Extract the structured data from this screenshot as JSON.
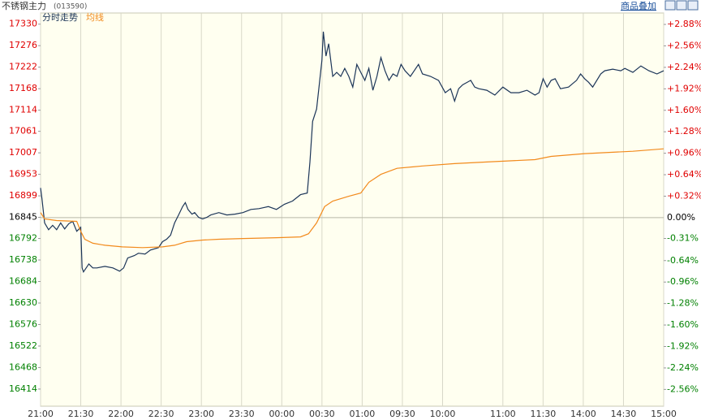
{
  "header": {
    "title": "不锈钢主力",
    "code": "(013590)",
    "overlay_button": "商品叠加"
  },
  "chart_data": {
    "type": "line",
    "xlim": [
      0,
      465
    ],
    "xticks": [
      {
        "value": 0,
        "label": "21:00"
      },
      {
        "value": 30,
        "label": "21:30"
      },
      {
        "value": 60,
        "label": "22:00"
      },
      {
        "value": 90,
        "label": "22:30"
      },
      {
        "value": 120,
        "label": "23:00"
      },
      {
        "value": 150,
        "label": "23:30"
      },
      {
        "value": 180,
        "label": "00:00"
      },
      {
        "value": 210,
        "label": "00:30"
      },
      {
        "value": 240,
        "label": "01:00"
      },
      {
        "value": 270,
        "label": "09:30"
      },
      {
        "value": 300,
        "label": "10:00"
      },
      {
        "value": 345,
        "label": "11:00"
      },
      {
        "value": 375,
        "label": "11:30"
      },
      {
        "value": 405,
        "label": "14:00"
      },
      {
        "value": 435,
        "label": "14:30"
      },
      {
        "value": 465,
        "label": "15:00"
      }
    ],
    "ylim": [
      16371,
      17358
    ],
    "yticks": [
      17330,
      17276,
      17222,
      17168,
      17114,
      17061,
      17007,
      16953,
      16899,
      16845,
      16792,
      16738,
      16684,
      16630,
      16576,
      16522,
      16468,
      16414
    ],
    "y2lim": [
      -2.81,
      3.05
    ],
    "y2ticks": [
      {
        "value": 2.88,
        "label": "+2.88%"
      },
      {
        "value": 2.56,
        "label": "+2.56%"
      },
      {
        "value": 2.24,
        "label": "+2.24%"
      },
      {
        "value": 1.92,
        "label": "+1.92%"
      },
      {
        "value": 1.6,
        "label": "+1.60%"
      },
      {
        "value": 1.28,
        "label": "+1.28%"
      },
      {
        "value": 0.96,
        "label": "+0.96%"
      },
      {
        "value": 0.64,
        "label": "+0.64%"
      },
      {
        "value": 0.32,
        "label": "+0.32%"
      },
      {
        "value": 0,
        "label": "0.00%"
      },
      {
        "value": -0.31,
        "label": "-0.31%"
      },
      {
        "value": -0.64,
        "label": "-0.64%"
      },
      {
        "value": -0.96,
        "label": "-0.96%"
      },
      {
        "value": -1.28,
        "label": "-1.28%"
      },
      {
        "value": -1.6,
        "label": "-1.60%"
      },
      {
        "value": -1.92,
        "label": "-1.92%"
      },
      {
        "value": -2.24,
        "label": "-2.24%"
      },
      {
        "value": -2.56,
        "label": "-2.56%"
      }
    ],
    "up_color": "#e00000",
    "down_color": "#008000",
    "flat_color": "#000000",
    "grid": true,
    "series": [
      {
        "name": "分时走势",
        "color": "#1c3558",
        "x": [
          0,
          1,
          3,
          6,
          9,
          12,
          15,
          18,
          21,
          24,
          27,
          30,
          31,
          32,
          36,
          39,
          42,
          48,
          54,
          59,
          62,
          65,
          70,
          73,
          78,
          82,
          88,
          91,
          94,
          97,
          100,
          103,
          106,
          108,
          110,
          113,
          115,
          118,
          121,
          124,
          127,
          133,
          139,
          145,
          151,
          157,
          163,
          170,
          176,
          182,
          188,
          194,
          199,
          201,
          203,
          206,
          208,
          210,
          211,
          213,
          215,
          218,
          221,
          224,
          227,
          230,
          233,
          236,
          239,
          242,
          245,
          248,
          251,
          254,
          257,
          260,
          263,
          266,
          269,
          272,
          276,
          282,
          285,
          291,
          297,
          302,
          306,
          309,
          312,
          315,
          321,
          324,
          327,
          333,
          339,
          345,
          351,
          357,
          363,
          369,
          372,
          375,
          378,
          381,
          384,
          388,
          394,
          400,
          403,
          406,
          409,
          412,
          418,
          421,
          427,
          433,
          436,
          442,
          448,
          454,
          460,
          465
        ],
        "values": [
          16919,
          16892,
          16831,
          16814,
          16825,
          16814,
          16831,
          16816,
          16829,
          16835,
          16810,
          16820,
          16718,
          16708,
          16728,
          16718,
          16718,
          16722,
          16718,
          16710,
          16718,
          16743,
          16749,
          16755,
          16753,
          16763,
          16769,
          16784,
          16790,
          16800,
          16831,
          16851,
          16872,
          16882,
          16865,
          16853,
          16857,
          16845,
          16841,
          16845,
          16851,
          16857,
          16851,
          16853,
          16857,
          16865,
          16867,
          16872,
          16865,
          16878,
          16886,
          16902,
          16906,
          16984,
          17086,
          17117,
          17178,
          17240,
          17311,
          17250,
          17281,
          17199,
          17209,
          17199,
          17219,
          17199,
          17172,
          17229,
          17209,
          17189,
          17219,
          17164,
          17199,
          17246,
          17213,
          17189,
          17205,
          17199,
          17229,
          17213,
          17199,
          17229,
          17205,
          17199,
          17189,
          17158,
          17168,
          17137,
          17168,
          17178,
          17189,
          17172,
          17168,
          17164,
          17152,
          17172,
          17158,
          17158,
          17164,
          17152,
          17158,
          17193,
          17172,
          17189,
          17193,
          17168,
          17172,
          17189,
          17205,
          17193,
          17184,
          17172,
          17205,
          17213,
          17217,
          17213,
          17219,
          17209,
          17225,
          17213,
          17205,
          17213
        ]
      },
      {
        "name": "均线",
        "color": "#f28a1c",
        "x": [
          0,
          3,
          12,
          27,
          30,
          33,
          39,
          48,
          61,
          76,
          91,
          100,
          109,
          121,
          133,
          151,
          176,
          194,
          200,
          206,
          212,
          218,
          230,
          239,
          245,
          254,
          266,
          285,
          309,
          333,
          369,
          381,
          406,
          442,
          465
        ],
        "values": [
          16857,
          16841,
          16837,
          16835,
          16810,
          16790,
          16780,
          16775,
          16771,
          16769,
          16771,
          16775,
          16784,
          16788,
          16790,
          16792,
          16794,
          16796,
          16804,
          16831,
          16872,
          16886,
          16898,
          16906,
          16933,
          16953,
          16968,
          16974,
          16980,
          16984,
          16990,
          16998,
          17005,
          17011,
          17017
        ]
      }
    ]
  }
}
